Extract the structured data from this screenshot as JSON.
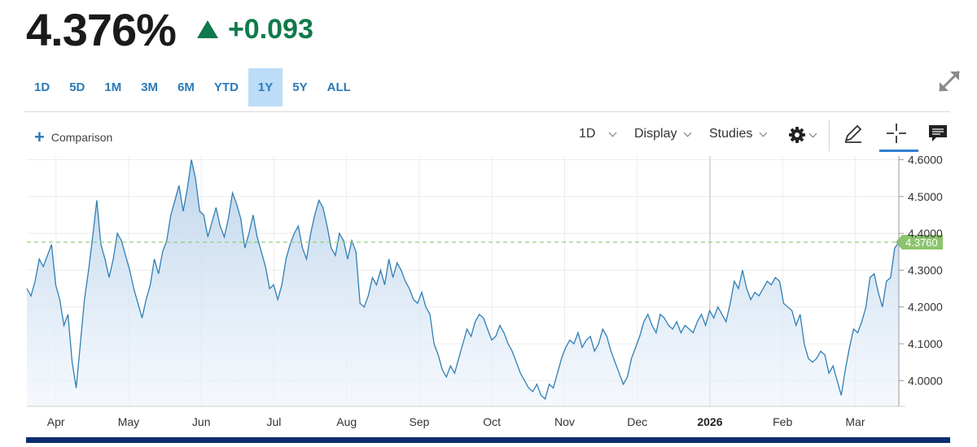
{
  "quote": {
    "price": "4.376%",
    "change": "+0.093",
    "direction": "up",
    "color": "#0f7a4a"
  },
  "ranges": [
    "1D",
    "5D",
    "1M",
    "3M",
    "6M",
    "YTD",
    "1Y",
    "5Y",
    "ALL"
  ],
  "active_range": "1Y",
  "toolbar": {
    "comparison_label": "Comparison",
    "interval_label": "1D",
    "display_label": "Display",
    "studies_label": "Studies"
  },
  "icons": [
    "expand-icon",
    "plus-icon",
    "gear-icon",
    "pencil-icon",
    "crosshair-icon",
    "comment-icon"
  ],
  "colors": {
    "line": "#2f7fb4",
    "fill_top": "#b9d2ea",
    "current_line": "#8fd17a",
    "label_bg": "#8cc46f",
    "active_tab": "#bcdcf7"
  },
  "chart_data": {
    "type": "area",
    "current_value": 4.376,
    "current_label": "4.3760",
    "ylim": [
      3.93,
      4.61
    ],
    "yticks": [
      4.0,
      4.1,
      4.2,
      4.3,
      4.4,
      4.5,
      4.6
    ],
    "ytick_labels": [
      "4.0000",
      "4.1000",
      "4.2000",
      "4.3000",
      "4.4000",
      "4.5000",
      "4.6000"
    ],
    "xlabels": [
      "Apr",
      "May",
      "Jun",
      "Jul",
      "Aug",
      "Sep",
      "Oct",
      "Nov",
      "Dec",
      "2026",
      "Feb",
      "Mar"
    ],
    "grid": true,
    "series": [
      {
        "values": [
          4.25,
          4.23,
          4.27,
          4.33,
          4.31,
          4.34,
          4.37,
          4.26,
          4.22,
          4.15,
          4.18,
          4.05,
          3.98,
          4.1,
          4.22,
          4.3,
          4.39,
          4.49,
          4.37,
          4.33,
          4.28,
          4.33,
          4.4,
          4.38,
          4.34,
          4.3,
          4.25,
          4.21,
          4.17,
          4.22,
          4.26,
          4.33,
          4.29,
          4.35,
          4.38,
          4.45,
          4.49,
          4.53,
          4.46,
          4.52,
          4.6,
          4.55,
          4.46,
          4.45,
          4.39,
          4.43,
          4.47,
          4.42,
          4.39,
          4.44,
          4.51,
          4.48,
          4.44,
          4.36,
          4.4,
          4.45,
          4.39,
          4.35,
          4.31,
          4.25,
          4.26,
          4.22,
          4.26,
          4.33,
          4.37,
          4.4,
          4.42,
          4.36,
          4.33,
          4.4,
          4.45,
          4.49,
          4.47,
          4.42,
          4.36,
          4.34,
          4.4,
          4.38,
          4.33,
          4.38,
          4.35,
          4.21,
          4.2,
          4.23,
          4.28,
          4.26,
          4.3,
          4.26,
          4.33,
          4.28,
          4.32,
          4.3,
          4.27,
          4.25,
          4.22,
          4.21,
          4.24,
          4.2,
          4.18,
          4.1,
          4.07,
          4.03,
          4.01,
          4.04,
          4.02,
          4.06,
          4.1,
          4.14,
          4.12,
          4.16,
          4.18,
          4.17,
          4.14,
          4.11,
          4.12,
          4.15,
          4.13,
          4.1,
          4.08,
          4.05,
          4.02,
          4.0,
          3.98,
          3.97,
          3.99,
          3.96,
          3.95,
          3.99,
          3.98,
          4.02,
          4.06,
          4.09,
          4.11,
          4.1,
          4.13,
          4.09,
          4.11,
          4.12,
          4.08,
          4.1,
          4.14,
          4.12,
          4.08,
          4.05,
          4.02,
          3.99,
          4.01,
          4.06,
          4.09,
          4.12,
          4.16,
          4.18,
          4.15,
          4.13,
          4.18,
          4.17,
          4.15,
          4.14,
          4.16,
          4.13,
          4.15,
          4.14,
          4.13,
          4.16,
          4.18,
          4.15,
          4.19,
          4.17,
          4.2,
          4.18,
          4.16,
          4.21,
          4.27,
          4.25,
          4.3,
          4.25,
          4.22,
          4.24,
          4.23,
          4.25,
          4.27,
          4.26,
          4.28,
          4.27,
          4.21,
          4.2,
          4.19,
          4.15,
          4.18,
          4.1,
          4.06,
          4.05,
          4.06,
          4.08,
          4.07,
          4.02,
          4.04,
          4.0,
          3.96,
          4.03,
          4.09,
          4.14,
          4.13,
          4.16,
          4.2,
          4.28,
          4.29,
          4.24,
          4.2,
          4.27,
          4.28,
          4.36,
          4.376
        ]
      }
    ]
  }
}
